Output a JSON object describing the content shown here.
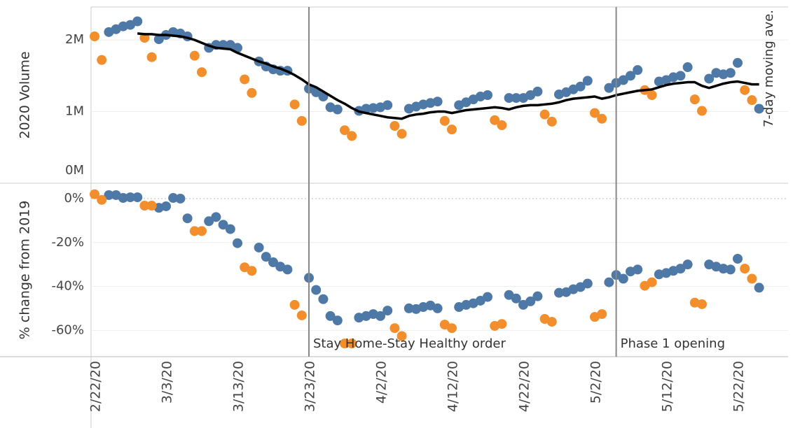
{
  "chart_data": [
    {
      "type": "scatter",
      "ylabel": "2020 Volume",
      "x": [
        "2/22/20",
        "2/23/20",
        "2/24/20",
        "2/25/20",
        "2/26/20",
        "2/27/20",
        "2/28/20",
        "2/29/20",
        "3/1/20",
        "3/2/20",
        "3/3/20",
        "3/4/20",
        "3/5/20",
        "3/6/20",
        "3/7/20",
        "3/8/20",
        "3/9/20",
        "3/10/20",
        "3/11/20",
        "3/12/20",
        "3/13/20",
        "3/14/20",
        "3/15/20",
        "3/16/20",
        "3/17/20",
        "3/18/20",
        "3/19/20",
        "3/20/20",
        "3/21/20",
        "3/22/20",
        "3/23/20",
        "3/24/20",
        "3/25/20",
        "3/26/20",
        "3/27/20",
        "3/28/20",
        "3/29/20",
        "3/30/20",
        "3/31/20",
        "4/1/20",
        "4/2/20",
        "4/3/20",
        "4/4/20",
        "4/5/20",
        "4/6/20",
        "4/7/20",
        "4/8/20",
        "4/9/20",
        "4/10/20",
        "4/11/20",
        "4/12/20",
        "4/13/20",
        "4/14/20",
        "4/15/20",
        "4/16/20",
        "4/17/20",
        "4/18/20",
        "4/19/20",
        "4/20/20",
        "4/21/20",
        "4/22/20",
        "4/23/20",
        "4/24/20",
        "4/25/20",
        "4/26/20",
        "4/27/20",
        "4/28/20",
        "4/29/20",
        "4/30/20",
        "5/1/20",
        "5/2/20",
        "5/3/20",
        "5/4/20",
        "5/5/20",
        "5/6/20",
        "5/7/20",
        "5/8/20",
        "5/9/20",
        "5/10/20",
        "5/11/20",
        "5/12/20",
        "5/13/20",
        "5/14/20",
        "5/15/20",
        "5/16/20",
        "5/17/20",
        "5/18/20",
        "5/19/20",
        "5/20/20",
        "5/21/20",
        "5/22/20",
        "5/23/20",
        "5/24/20",
        "5/25/20"
      ],
      "ylim": [
        0,
        2460000
      ],
      "yticks": [
        {
          "value": 0,
          "label": "0M"
        },
        {
          "value": 1000000,
          "label": "1M"
        },
        {
          "value": 2000000,
          "label": "2M"
        }
      ],
      "grid": true,
      "series": [
        {
          "color": "#4e79a7",
          "values": [
            null,
            null,
            2110000,
            2150000,
            2190000,
            2210000,
            2260000,
            null,
            null,
            2010000,
            2070000,
            2110000,
            2090000,
            2050000,
            null,
            null,
            1890000,
            1930000,
            1930000,
            1930000,
            1890000,
            null,
            null,
            1700000,
            1630000,
            1590000,
            1570000,
            1570000,
            null,
            null,
            1320000,
            1270000,
            1210000,
            1060000,
            1030000,
            null,
            null,
            1010000,
            1040000,
            1050000,
            1060000,
            1090000,
            null,
            null,
            1040000,
            1070000,
            1100000,
            1120000,
            1140000,
            null,
            null,
            1090000,
            1130000,
            1170000,
            1210000,
            1230000,
            null,
            null,
            1190000,
            1190000,
            1190000,
            1230000,
            1280000,
            null,
            null,
            1240000,
            1270000,
            1310000,
            1350000,
            1430000,
            null,
            null,
            1330000,
            1400000,
            1440000,
            1500000,
            1580000,
            null,
            null,
            1420000,
            1440000,
            1480000,
            1500000,
            1620000,
            null,
            null,
            1460000,
            1540000,
            1520000,
            1540000,
            1680000,
            null,
            null,
            1040000
          ]
        },
        {
          "color": "#f28e2b",
          "values": [
            2050000,
            1720000,
            null,
            null,
            null,
            null,
            null,
            2030000,
            1760000,
            null,
            null,
            null,
            null,
            null,
            1780000,
            1550000,
            null,
            null,
            null,
            null,
            null,
            1450000,
            1260000,
            null,
            null,
            null,
            null,
            null,
            1100000,
            870000,
            null,
            null,
            null,
            null,
            null,
            740000,
            660000,
            null,
            null,
            null,
            null,
            null,
            800000,
            690000,
            null,
            null,
            null,
            null,
            null,
            870000,
            750000,
            null,
            null,
            null,
            null,
            null,
            880000,
            810000,
            null,
            null,
            null,
            null,
            null,
            960000,
            860000,
            null,
            null,
            null,
            null,
            null,
            980000,
            900000,
            null,
            null,
            null,
            null,
            null,
            1300000,
            1230000,
            null,
            null,
            null,
            null,
            null,
            1170000,
            1010000,
            null,
            null,
            null,
            null,
            null,
            1300000,
            1160000,
            null
          ]
        },
        {
          "type": "line",
          "name": "7-day moving ave.",
          "color": "#000000",
          "values": [
            null,
            null,
            null,
            null,
            null,
            null,
            2090000,
            2080000,
            2080000,
            2070000,
            2070000,
            2060000,
            2050000,
            2030000,
            2000000,
            1960000,
            1920000,
            1890000,
            1880000,
            1870000,
            1820000,
            1780000,
            1740000,
            1700000,
            1670000,
            1630000,
            1600000,
            1560000,
            1510000,
            1450000,
            1380000,
            1340000,
            1280000,
            1220000,
            1160000,
            1110000,
            1050000,
            1000000,
            980000,
            960000,
            940000,
            920000,
            910000,
            900000,
            940000,
            960000,
            970000,
            990000,
            1000000,
            1000000,
            980000,
            1000000,
            1020000,
            1030000,
            1040000,
            1050000,
            1060000,
            1050000,
            1030000,
            1060000,
            1080000,
            1090000,
            1090000,
            1100000,
            1110000,
            1130000,
            1160000,
            1180000,
            1190000,
            1200000,
            1210000,
            1180000,
            1200000,
            1230000,
            1250000,
            1270000,
            1290000,
            1300000,
            1310000,
            1340000,
            1370000,
            1390000,
            1400000,
            1410000,
            1410000,
            1360000,
            1330000,
            1360000,
            1390000,
            1410000,
            1420000,
            1400000,
            1380000,
            1380000
          ]
        }
      ]
    },
    {
      "type": "scatter",
      "ylabel": "% change from 2019",
      "x": [
        "2/22/20",
        "2/23/20",
        "2/24/20",
        "2/25/20",
        "2/26/20",
        "2/27/20",
        "2/28/20",
        "2/29/20",
        "3/1/20",
        "3/2/20",
        "3/3/20",
        "3/4/20",
        "3/5/20",
        "3/6/20",
        "3/7/20",
        "3/8/20",
        "3/9/20",
        "3/10/20",
        "3/11/20",
        "3/12/20",
        "3/13/20",
        "3/14/20",
        "3/15/20",
        "3/16/20",
        "3/17/20",
        "3/18/20",
        "3/19/20",
        "3/20/20",
        "3/21/20",
        "3/22/20",
        "3/23/20",
        "3/24/20",
        "3/25/20",
        "3/26/20",
        "3/27/20",
        "3/28/20",
        "3/29/20",
        "3/30/20",
        "3/31/20",
        "4/1/20",
        "4/2/20",
        "4/3/20",
        "4/4/20",
        "4/5/20",
        "4/6/20",
        "4/7/20",
        "4/8/20",
        "4/9/20",
        "4/10/20",
        "4/11/20",
        "4/12/20",
        "4/13/20",
        "4/14/20",
        "4/15/20",
        "4/16/20",
        "4/17/20",
        "4/18/20",
        "4/19/20",
        "4/20/20",
        "4/21/20",
        "4/22/20",
        "4/23/20",
        "4/24/20",
        "4/25/20",
        "4/26/20",
        "4/27/20",
        "4/28/20",
        "4/29/20",
        "4/30/20",
        "5/1/20",
        "5/2/20",
        "5/3/20",
        "5/4/20",
        "5/5/20",
        "5/6/20",
        "5/7/20",
        "5/8/20",
        "5/9/20",
        "5/10/20",
        "5/11/20",
        "5/12/20",
        "5/13/20",
        "5/14/20",
        "5/15/20",
        "5/16/20",
        "5/17/20",
        "5/18/20",
        "5/19/20",
        "5/20/20",
        "5/21/20",
        "5/22/20",
        "5/23/20",
        "5/24/20",
        "5/25/20"
      ],
      "xticks": [
        "2/22/20",
        "3/3/20",
        "3/13/20",
        "3/23/20",
        "4/2/20",
        "4/12/20",
        "4/22/20",
        "5/2/20",
        "5/12/20",
        "5/22/20"
      ],
      "ylim": [
        -72,
        7
      ],
      "yticks": [
        {
          "value": 0,
          "label": "0%"
        },
        {
          "value": -20,
          "label": "-20%"
        },
        {
          "value": -40,
          "label": "-40%"
        },
        {
          "value": -60,
          "label": "-60%"
        }
      ],
      "grid": true,
      "annotations": [
        {
          "x": "3/23/20",
          "text": "Stay Home-Stay Healthy order"
        },
        {
          "x": "5/5/20",
          "text": "Phase 1 opening"
        }
      ],
      "series": [
        {
          "color": "#4e79a7",
          "values": [
            null,
            null,
            1.6,
            1.6,
            0.3,
            0.6,
            0.6,
            null,
            null,
            -4.2,
            -3.5,
            0.3,
            0,
            -9,
            null,
            null,
            -10.3,
            -8.4,
            -11.9,
            -13.9,
            -20.3,
            null,
            null,
            -22.3,
            -26.5,
            -29,
            -31,
            -32.3,
            null,
            null,
            -36.1,
            -41.6,
            -45.8,
            -53.5,
            -55.5,
            null,
            null,
            -54.2,
            -53.5,
            -52.6,
            -53.5,
            -51,
            null,
            null,
            -50,
            -50.3,
            -49.4,
            -48.7,
            -50,
            null,
            null,
            -49.4,
            -48.4,
            -47.7,
            -46.5,
            -44.8,
            null,
            null,
            -43.9,
            -45.5,
            -48.4,
            -46.8,
            -44.5,
            null,
            null,
            -42.9,
            -42.6,
            -41.3,
            -40.3,
            -38.7,
            null,
            null,
            -38.1,
            -34.8,
            -36.5,
            -33.2,
            -32.3,
            null,
            null,
            -34.5,
            -33.9,
            -32.9,
            -31.9,
            -30,
            null,
            null,
            -30,
            -31,
            -31.9,
            -32.3,
            -27.4,
            null,
            null,
            -40.6
          ]
        },
        {
          "color": "#f28e2b",
          "values": [
            2,
            -0.6,
            null,
            null,
            null,
            null,
            null,
            -3.2,
            -3.2,
            null,
            null,
            null,
            null,
            null,
            -14.8,
            -14.8,
            null,
            null,
            null,
            null,
            null,
            -31.3,
            -32.9,
            null,
            null,
            null,
            null,
            null,
            -48.4,
            -53.2,
            null,
            null,
            null,
            null,
            null,
            -66,
            -66,
            null,
            null,
            null,
            null,
            null,
            -59,
            -62.6,
            null,
            null,
            null,
            null,
            null,
            -57.4,
            -59,
            null,
            null,
            null,
            null,
            null,
            -58,
            -57.1,
            null,
            null,
            null,
            null,
            null,
            -54.8,
            -56.1,
            null,
            null,
            null,
            null,
            null,
            -53.9,
            -52.6,
            null,
            null,
            null,
            null,
            null,
            -39.7,
            -38.1,
            null,
            null,
            null,
            null,
            null,
            -47.4,
            -48.1,
            null,
            null,
            null,
            null,
            null,
            -31.9,
            -36.5,
            null
          ]
        }
      ]
    }
  ]
}
